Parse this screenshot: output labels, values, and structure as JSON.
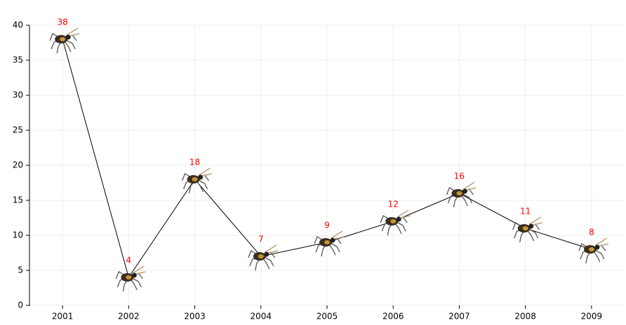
{
  "chart_data": {
    "type": "line",
    "categories": [
      "2001",
      "2002",
      "2003",
      "2004",
      "2005",
      "2006",
      "2007",
      "2008",
      "2009"
    ],
    "values": [
      38,
      4,
      18,
      7,
      9,
      12,
      16,
      11,
      8
    ],
    "color": "#000000",
    "label_color": "#ff0000",
    "ylim": [
      0,
      40
    ],
    "yticks": [
      0,
      5,
      10,
      15,
      20,
      25,
      30,
      35,
      40
    ],
    "grid": true
  }
}
